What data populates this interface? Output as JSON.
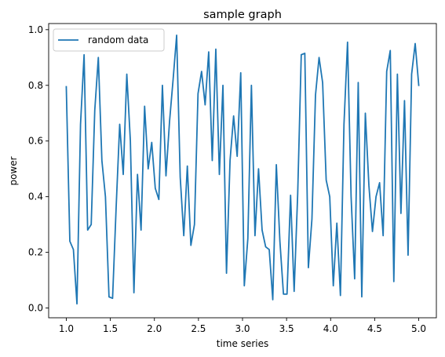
{
  "chart_data": {
    "type": "line",
    "title": "sample graph",
    "xlabel": "time series",
    "ylabel": "power",
    "xlim": [
      0.8,
      5.2
    ],
    "ylim": [
      -0.035,
      1.022
    ],
    "xticks": [
      1.0,
      1.5,
      2.0,
      2.5,
      3.0,
      3.5,
      4.0,
      4.5,
      5.0
    ],
    "xtick_labels": [
      "1.0",
      "1.5",
      "2.0",
      "2.5",
      "3.0",
      "3.5",
      "4.0",
      "4.5",
      "5.0"
    ],
    "yticks": [
      0.0,
      0.2,
      0.4,
      0.6,
      0.8,
      1.0
    ],
    "ytick_labels": [
      "0.0",
      "0.2",
      "0.4",
      "0.6",
      "0.8",
      "1.0"
    ],
    "grid": false,
    "legend": {
      "placement": "top-left"
    },
    "line_color": "#1f77b4",
    "series": [
      {
        "name": "random data",
        "x_start": 1.0,
        "x_end": 5.0,
        "values": [
          0.795,
          0.24,
          0.21,
          0.015,
          0.66,
          0.91,
          0.28,
          0.3,
          0.71,
          0.9,
          0.53,
          0.4,
          0.04,
          0.035,
          0.36,
          0.66,
          0.48,
          0.84,
          0.6,
          0.055,
          0.48,
          0.28,
          0.725,
          0.5,
          0.595,
          0.43,
          0.39,
          0.8,
          0.475,
          0.67,
          0.82,
          0.98,
          0.47,
          0.26,
          0.51,
          0.225,
          0.3,
          0.77,
          0.85,
          0.73,
          0.92,
          0.53,
          0.93,
          0.48,
          0.8,
          0.125,
          0.53,
          0.69,
          0.545,
          0.845,
          0.08,
          0.25,
          0.8,
          0.26,
          0.5,
          0.28,
          0.22,
          0.21,
          0.03,
          0.515,
          0.24,
          0.05,
          0.05,
          0.405,
          0.06,
          0.41,
          0.91,
          0.915,
          0.145,
          0.32,
          0.765,
          0.9,
          0.81,
          0.46,
          0.4,
          0.08,
          0.305,
          0.045,
          0.66,
          0.955,
          0.4,
          0.105,
          0.81,
          0.04,
          0.7,
          0.44,
          0.275,
          0.4,
          0.45,
          0.26,
          0.85,
          0.925,
          0.095,
          0.84,
          0.34,
          0.745,
          0.19,
          0.84,
          0.95,
          0.8
        ]
      }
    ]
  }
}
